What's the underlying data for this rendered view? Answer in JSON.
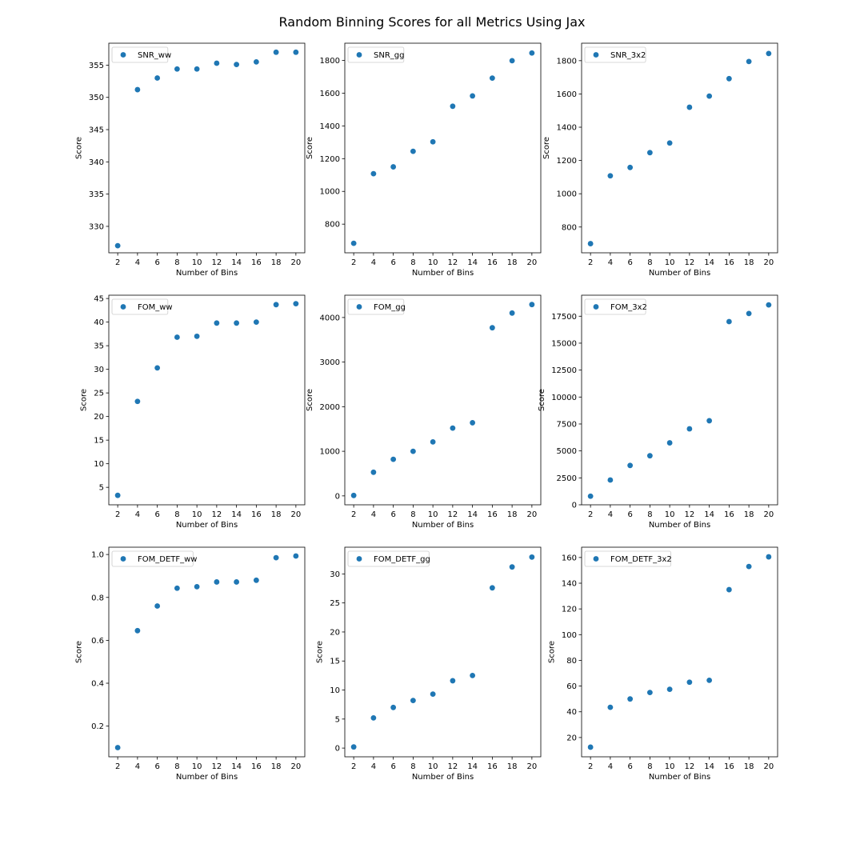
{
  "title": "Random Binning Scores for all Metrics Using Jax",
  "colors": {
    "marker": "#1f77b4",
    "legend_border": "#cccccc"
  },
  "chart_data": [
    {
      "type": "scatter",
      "legend": "SNR_ww",
      "legend_loc": "upper-left",
      "xlabel": "Number of Bins",
      "ylabel": "Score",
      "x": [
        2,
        4,
        6,
        8,
        10,
        12,
        14,
        16,
        18,
        20
      ],
      "y": [
        327.0,
        351.2,
        353.0,
        354.4,
        354.4,
        355.3,
        355.1,
        355.5,
        357.0,
        357.0
      ],
      "ylim": [
        325.9,
        358.4
      ],
      "yticks": [
        330,
        335,
        340,
        345,
        350,
        355
      ],
      "grid": false
    },
    {
      "type": "scatter",
      "legend": "SNR_gg",
      "legend_loc": "upper-left",
      "xlabel": "Number of Bins",
      "ylabel": "Score",
      "x": [
        2,
        4,
        6,
        8,
        10,
        12,
        14,
        16,
        18,
        20
      ],
      "y": [
        683,
        1108,
        1150,
        1245,
        1303,
        1520,
        1583,
        1692,
        1798,
        1845
      ],
      "ylim": [
        625,
        1905
      ],
      "yticks": [
        800,
        1000,
        1200,
        1400,
        1600,
        1800
      ],
      "grid": false
    },
    {
      "type": "scatter",
      "legend": "SNR_3x2",
      "legend_loc": "upper-left",
      "xlabel": "Number of Bins",
      "ylabel": "Score",
      "x": [
        2,
        4,
        6,
        8,
        10,
        12,
        14,
        16,
        18,
        20
      ],
      "y": [
        700,
        1108,
        1158,
        1247,
        1305,
        1520,
        1587,
        1692,
        1795,
        1843
      ],
      "ylim": [
        645,
        1905
      ],
      "yticks": [
        800,
        1000,
        1200,
        1400,
        1600,
        1800
      ],
      "grid": false
    },
    {
      "type": "scatter",
      "legend": "FOM_ww",
      "legend_loc": "upper-left",
      "xlabel": "Number of Bins",
      "ylabel": "Score",
      "x": [
        2,
        4,
        6,
        8,
        10,
        12,
        14,
        16,
        18,
        20
      ],
      "y": [
        3.3,
        23.2,
        30.3,
        36.8,
        37.0,
        39.8,
        39.8,
        40.0,
        43.7,
        43.9
      ],
      "ylim": [
        1.3,
        45.7
      ],
      "yticks": [
        5,
        10,
        15,
        20,
        25,
        30,
        35,
        40,
        45
      ],
      "grid": false
    },
    {
      "type": "scatter",
      "legend": "FOM_gg",
      "legend_loc": "upper-left",
      "xlabel": "Number of Bins",
      "ylabel": "Score",
      "x": [
        2,
        4,
        6,
        8,
        10,
        12,
        14,
        16,
        18,
        20
      ],
      "y": [
        10,
        530,
        820,
        1000,
        1210,
        1520,
        1640,
        3770,
        4100,
        4290
      ],
      "ylim": [
        -200,
        4500
      ],
      "yticks": [
        0,
        1000,
        2000,
        3000,
        4000
      ],
      "grid": false
    },
    {
      "type": "scatter",
      "legend": "FOM_3x2",
      "legend_loc": "upper-left",
      "xlabel": "Number of Bins",
      "ylabel": "Score",
      "x": [
        2,
        4,
        6,
        8,
        10,
        12,
        14,
        16,
        18,
        20
      ],
      "y": [
        800,
        2300,
        3650,
        4550,
        5750,
        7050,
        7800,
        17000,
        17750,
        18550
      ],
      "ylim": [
        0,
        19450
      ],
      "yticks": [
        0,
        2500,
        5000,
        7500,
        10000,
        12500,
        15000,
        17500
      ],
      "grid": false
    },
    {
      "type": "scatter",
      "legend": "FOM_DETF_ww",
      "legend_loc": "upper-left",
      "xlabel": "Number of Bins",
      "ylabel": "Score",
      "x": [
        2,
        4,
        6,
        8,
        10,
        12,
        14,
        16,
        18,
        20
      ],
      "y": [
        0.1,
        0.645,
        0.76,
        0.843,
        0.85,
        0.872,
        0.872,
        0.88,
        0.985,
        0.993
      ],
      "ylim": [
        0.057,
        1.034
      ],
      "yticks": [
        0.2,
        0.4,
        0.6,
        0.8,
        1.0
      ],
      "yticklabels": [
        "0.2",
        "0.4",
        "0.6",
        "0.8",
        "1.0"
      ],
      "grid": false
    },
    {
      "type": "scatter",
      "legend": "FOM_DETF_gg",
      "legend_loc": "upper-left",
      "xlabel": "Number of Bins",
      "ylabel": "Score",
      "x": [
        2,
        4,
        6,
        8,
        10,
        12,
        14,
        16,
        18,
        20
      ],
      "y": [
        0.2,
        5.2,
        7.0,
        8.2,
        9.3,
        11.6,
        12.5,
        27.6,
        31.2,
        32.9
      ],
      "ylim": [
        -1.5,
        34.6
      ],
      "yticks": [
        0,
        5,
        10,
        15,
        20,
        25,
        30
      ],
      "grid": false
    },
    {
      "type": "scatter",
      "legend": "FOM_DETF_3x2",
      "legend_loc": "upper-left",
      "xlabel": "Number of Bins",
      "ylabel": "Score",
      "x": [
        2,
        4,
        6,
        8,
        10,
        12,
        14,
        16,
        18,
        20
      ],
      "y": [
        12.5,
        43.5,
        50.0,
        55.0,
        57.5,
        63.0,
        64.5,
        135.0,
        153.0,
        160.5
      ],
      "ylim": [
        5,
        168
      ],
      "yticks": [
        20,
        40,
        60,
        80,
        100,
        120,
        140,
        160
      ],
      "grid": false
    }
  ]
}
